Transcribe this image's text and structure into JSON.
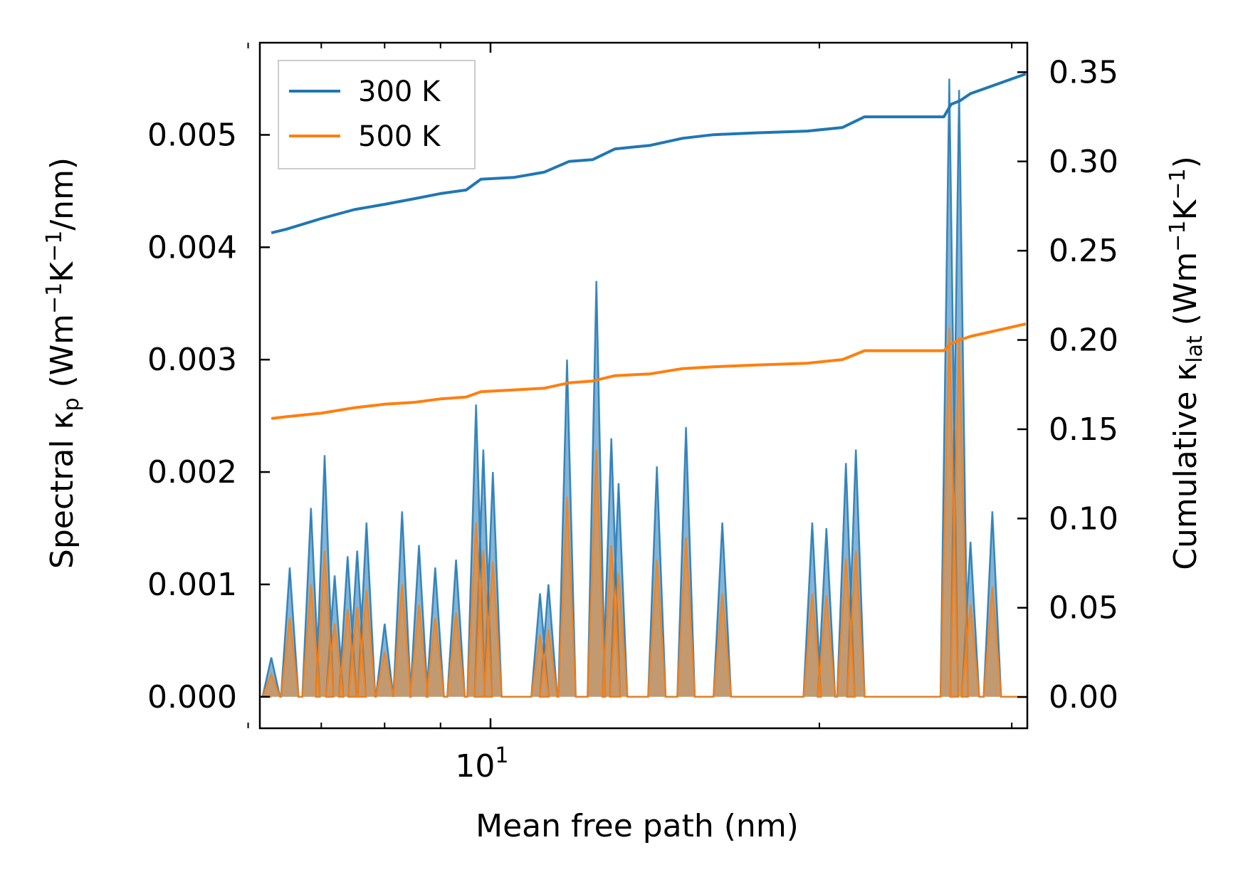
{
  "chart_data": {
    "type": "line",
    "xscale": "log",
    "xlabel": "Mean free path (nm)",
    "ylabel_left": {
      "pre": "Spectral κ",
      "sub": "p",
      "mid": " (Wm",
      "sup1": "−1",
      "k": "K",
      "sup2": "−1",
      "post": "/nm)"
    },
    "ylabel_right": {
      "pre": "Cumulative κ",
      "sub": "lat",
      "mid": " (Wm",
      "sup1": "−1",
      "k": "K",
      "sup2": "−1",
      "post": ")"
    },
    "xlim": [
      6.15,
      31.0
    ],
    "ylim_left": [
      -0.00028,
      0.00582
    ],
    "ylim_right": [
      -0.0175,
      0.3665
    ],
    "x_major_ticks": [
      {
        "value": 10,
        "base": "10",
        "exp": "1"
      }
    ],
    "x_minor_ticks": [
      6,
      7,
      8,
      9,
      20,
      30
    ],
    "yticks_left": [
      {
        "value": 0.0,
        "label": "0.000"
      },
      {
        "value": 0.001,
        "label": "0.001"
      },
      {
        "value": 0.002,
        "label": "0.002"
      },
      {
        "value": 0.003,
        "label": "0.003"
      },
      {
        "value": 0.004,
        "label": "0.004"
      },
      {
        "value": 0.005,
        "label": "0.005"
      }
    ],
    "yticks_right": [
      {
        "value": 0.0,
        "label": "0.00"
      },
      {
        "value": 0.05,
        "label": "0.05"
      },
      {
        "value": 0.1,
        "label": "0.10"
      },
      {
        "value": 0.15,
        "label": "0.15"
      },
      {
        "value": 0.2,
        "label": "0.20"
      },
      {
        "value": 0.25,
        "label": "0.25"
      },
      {
        "value": 0.3,
        "label": "0.30"
      },
      {
        "value": 0.35,
        "label": "0.35"
      }
    ],
    "legend": {
      "position": "top-left",
      "entries": [
        {
          "label": "300 K",
          "color": "#1f77b4"
        },
        {
          "label": "500 K",
          "color": "#ff7f0e"
        }
      ]
    },
    "series": [
      {
        "name": "300 K spectral",
        "axis": "left",
        "color": "#1f77b4",
        "peaks": [
          [
            6.3,
            0.00035
          ],
          [
            6.55,
            0.00115
          ],
          [
            6.85,
            0.00168
          ],
          [
            7.05,
            0.00215
          ],
          [
            7.2,
            0.00108
          ],
          [
            7.4,
            0.00125
          ],
          [
            7.55,
            0.0013
          ],
          [
            7.7,
            0.00155
          ],
          [
            8.0,
            0.00065
          ],
          [
            8.3,
            0.00165
          ],
          [
            8.6,
            0.00135
          ],
          [
            8.9,
            0.00115
          ],
          [
            9.3,
            0.00122
          ],
          [
            9.7,
            0.0026
          ],
          [
            9.85,
            0.0022
          ],
          [
            10.05,
            0.002
          ],
          [
            11.1,
            0.00092
          ],
          [
            11.3,
            0.001
          ],
          [
            11.75,
            0.003
          ],
          [
            12.5,
            0.0037
          ],
          [
            12.9,
            0.0023
          ],
          [
            13.1,
            0.0019
          ],
          [
            14.2,
            0.00205
          ],
          [
            15.1,
            0.0024
          ],
          [
            16.3,
            0.00155
          ],
          [
            19.7,
            0.00155
          ],
          [
            20.3,
            0.0015
          ],
          [
            21.15,
            0.00208
          ],
          [
            21.6,
            0.0022
          ],
          [
            26.3,
            0.0055
          ],
          [
            26.85,
            0.0054
          ],
          [
            27.5,
            0.00138
          ],
          [
            28.8,
            0.00165
          ],
          [
            22.5,
            0.0
          ],
          [
            24.9,
            0.0
          ]
        ]
      },
      {
        "name": "500 K spectral",
        "axis": "left",
        "color": "#ff7f0e",
        "peaks": [
          [
            6.3,
            0.0002
          ],
          [
            6.55,
            0.0007
          ],
          [
            6.85,
            0.001
          ],
          [
            7.05,
            0.0013
          ],
          [
            7.2,
            0.00065
          ],
          [
            7.4,
            0.00078
          ],
          [
            7.55,
            0.0008
          ],
          [
            7.7,
            0.00095
          ],
          [
            8.0,
            0.0004
          ],
          [
            8.3,
            0.001
          ],
          [
            8.6,
            0.00082
          ],
          [
            8.9,
            0.0007
          ],
          [
            9.3,
            0.00075
          ],
          [
            9.7,
            0.00155
          ],
          [
            9.85,
            0.0013
          ],
          [
            10.05,
            0.0012
          ],
          [
            11.1,
            0.00055
          ],
          [
            11.3,
            0.0006
          ],
          [
            11.75,
            0.00178
          ],
          [
            12.5,
            0.0022
          ],
          [
            12.9,
            0.00135
          ],
          [
            13.1,
            0.0011
          ],
          [
            14.2,
            0.00122
          ],
          [
            15.1,
            0.00142
          ],
          [
            16.3,
            0.00092
          ],
          [
            19.7,
            0.00092
          ],
          [
            20.3,
            0.0009
          ],
          [
            21.15,
            0.00123
          ],
          [
            21.6,
            0.0013
          ],
          [
            26.3,
            0.00328
          ],
          [
            26.85,
            0.0032
          ],
          [
            27.5,
            0.00082
          ],
          [
            28.8,
            0.00098
          ]
        ]
      },
      {
        "name": "300 K",
        "axis": "right",
        "color": "#1f77b4",
        "cumulative": [
          [
            6.3,
            0.26
          ],
          [
            6.5,
            0.262
          ],
          [
            7.0,
            0.268
          ],
          [
            7.5,
            0.273
          ],
          [
            8.0,
            0.276
          ],
          [
            8.5,
            0.279
          ],
          [
            9.0,
            0.282
          ],
          [
            9.5,
            0.284
          ],
          [
            9.8,
            0.29
          ],
          [
            10.5,
            0.291
          ],
          [
            11.2,
            0.294
          ],
          [
            11.8,
            0.3
          ],
          [
            12.4,
            0.301
          ],
          [
            13.0,
            0.307
          ],
          [
            14.0,
            0.309
          ],
          [
            15.0,
            0.313
          ],
          [
            16.0,
            0.315
          ],
          [
            17.5,
            0.316
          ],
          [
            19.5,
            0.317
          ],
          [
            21.0,
            0.319
          ],
          [
            22.0,
            0.325
          ],
          [
            26.0,
            0.325
          ],
          [
            26.4,
            0.332
          ],
          [
            26.9,
            0.334
          ],
          [
            27.5,
            0.338
          ],
          [
            30.9,
            0.349
          ]
        ]
      },
      {
        "name": "500 K",
        "axis": "right",
        "color": "#ff7f0e",
        "cumulative": [
          [
            6.3,
            0.156
          ],
          [
            6.5,
            0.157
          ],
          [
            7.0,
            0.159
          ],
          [
            7.5,
            0.162
          ],
          [
            8.0,
            0.164
          ],
          [
            8.5,
            0.165
          ],
          [
            9.0,
            0.167
          ],
          [
            9.5,
            0.168
          ],
          [
            9.8,
            0.171
          ],
          [
            10.5,
            0.172
          ],
          [
            11.2,
            0.173
          ],
          [
            11.8,
            0.176
          ],
          [
            12.4,
            0.177
          ],
          [
            13.0,
            0.18
          ],
          [
            14.0,
            0.181
          ],
          [
            15.0,
            0.184
          ],
          [
            16.0,
            0.185
          ],
          [
            17.5,
            0.186
          ],
          [
            19.5,
            0.187
          ],
          [
            21.0,
            0.189
          ],
          [
            22.0,
            0.194
          ],
          [
            26.0,
            0.194
          ],
          [
            26.4,
            0.198
          ],
          [
            26.9,
            0.2
          ],
          [
            27.5,
            0.202
          ],
          [
            30.9,
            0.209
          ]
        ]
      }
    ]
  }
}
